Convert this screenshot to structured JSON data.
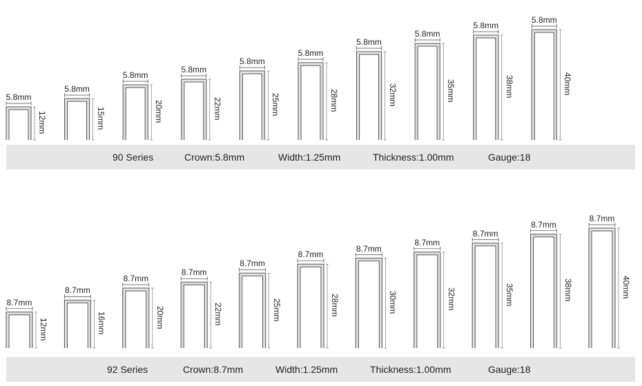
{
  "series_90": {
    "spec": {
      "series": "90 Series",
      "crown": "Crown:5.8mm",
      "width": "Width:1.25mm",
      "thickness": "Thickness:1.00mm",
      "gauge": "Gauge:18"
    },
    "staples": [
      {
        "crown": "5.8mm",
        "length": "12mm",
        "length_mm": 12
      },
      {
        "crown": "5.8mm",
        "length": "15mm",
        "length_mm": 15
      },
      {
        "crown": "5.8mm",
        "length": "20mm",
        "length_mm": 20
      },
      {
        "crown": "5.8mm",
        "length": "22mm",
        "length_mm": 22
      },
      {
        "crown": "5.8mm",
        "length": "25mm",
        "length_mm": 25
      },
      {
        "crown": "5.8mm",
        "length": "28mm",
        "length_mm": 28
      },
      {
        "crown": "5.8mm",
        "length": "32mm",
        "length_mm": 32
      },
      {
        "crown": "5.8mm",
        "length": "35mm",
        "length_mm": 35
      },
      {
        "crown": "5.8mm",
        "length": "38mm",
        "length_mm": 38
      },
      {
        "crown": "5.8mm",
        "length": "40mm",
        "length_mm": 40
      }
    ]
  },
  "series_92": {
    "spec": {
      "series": "92 Series",
      "crown": "Crown:8.7mm",
      "width": "Width:1.25mm",
      "thickness": "Thickness:1.00mm",
      "gauge": "Gauge:18"
    },
    "staples": [
      {
        "crown": "8.7mm",
        "length": "12mm",
        "length_mm": 12
      },
      {
        "crown": "8.7mm",
        "length": "16mm",
        "length_mm": 16
      },
      {
        "crown": "8.7mm",
        "length": "20mm",
        "length_mm": 20
      },
      {
        "crown": "8.7mm",
        "length": "22mm",
        "length_mm": 22
      },
      {
        "crown": "8.7mm",
        "length": "25mm",
        "length_mm": 25
      },
      {
        "crown": "8.7mm",
        "length": "28mm",
        "length_mm": 28
      },
      {
        "crown": "8.7mm",
        "length": "30mm",
        "length_mm": 30
      },
      {
        "crown": "8.7mm",
        "length": "32mm",
        "length_mm": 32
      },
      {
        "crown": "8.7mm",
        "length": "35mm",
        "length_mm": 35
      },
      {
        "crown": "8.7mm",
        "length": "38mm",
        "length_mm": 38
      },
      {
        "crown": "8.7mm",
        "length": "40mm",
        "length_mm": 40
      }
    ]
  }
}
